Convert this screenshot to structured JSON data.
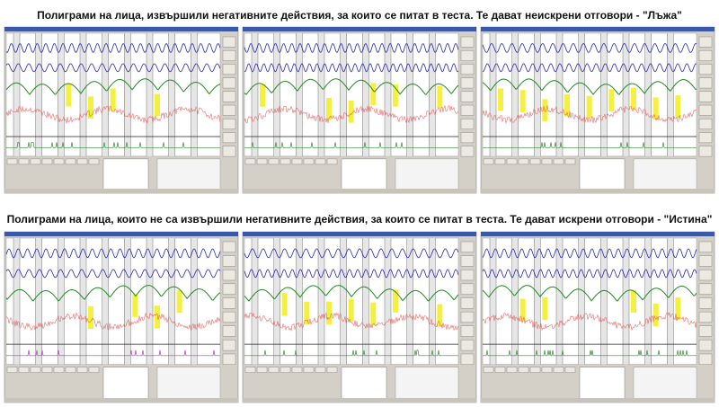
{
  "sections": [
    {
      "caption": "Полиграми на лица, извършили негативните действия, за които се питат в теста. Те дават неискрени отговори - \"Лъжа\""
    },
    {
      "caption": "Полиграми на лица, които не са извършили негативните действия, за които се питат в теста. Те дават искрени отговори - \"Истина\""
    }
  ]
}
